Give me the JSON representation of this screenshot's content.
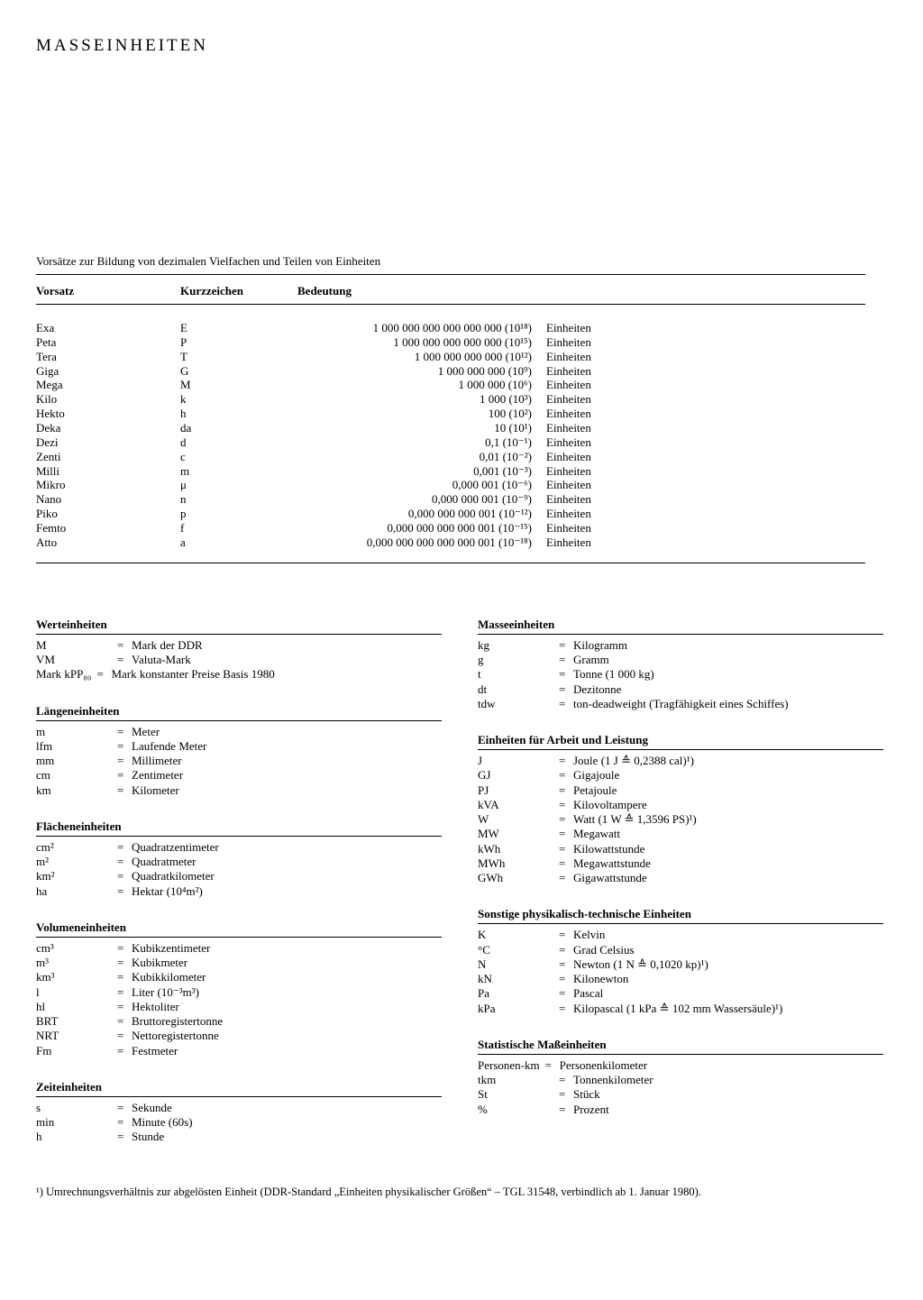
{
  "title": "MASSEINHEITEN",
  "prefixIntro": "Vorsätze zur Bildung von dezimalen Vielfachen und Teilen von Einheiten",
  "prefixHeaders": {
    "vorsatz": "Vorsatz",
    "kurz": "Kurzzeichen",
    "bedeutung": "Bedeutung"
  },
  "einheitenLabel": "Einheiten",
  "prefixes": [
    {
      "name": "Exa",
      "sym": "E",
      "val": "1 000 000 000 000 000 000 (10¹⁸)"
    },
    {
      "name": "Peta",
      "sym": "P",
      "val": "1 000 000 000 000 000 (10¹⁵)"
    },
    {
      "name": "Tera",
      "sym": "T",
      "val": "1 000 000 000 000 (10¹²)"
    },
    {
      "name": "Giga",
      "sym": "G",
      "val": "1 000 000 000 (10⁹)"
    },
    {
      "name": "Mega",
      "sym": "M",
      "val": "1 000 000 (10⁶)"
    },
    {
      "name": "Kilo",
      "sym": "k",
      "val": "1 000 (10³)"
    },
    {
      "name": "Hekto",
      "sym": "h",
      "val": "100 (10²)"
    },
    {
      "name": "Deka",
      "sym": "da",
      "val": "10 (10¹)"
    },
    {
      "name": "Dezi",
      "sym": "d",
      "val": "0,1 (10⁻¹)"
    },
    {
      "name": "Zenti",
      "sym": "c",
      "val": "0,01 (10⁻²)"
    },
    {
      "name": "Milli",
      "sym": "m",
      "val": "0,001 (10⁻³)"
    },
    {
      "name": "Mikro",
      "sym": "μ",
      "val": "0,000 001 (10⁻⁶)"
    },
    {
      "name": "Nano",
      "sym": "n",
      "val": "0,000 000 001 (10⁻⁹)"
    },
    {
      "name": "Piko",
      "sym": "p",
      "val": "0,000 000 000 001 (10⁻¹²)"
    },
    {
      "name": "Femto",
      "sym": "f",
      "val": "0,000 000 000 000 001 (10⁻¹⁵)"
    },
    {
      "name": "Atto",
      "sym": "a",
      "val": "0,000 000 000 000 000 001 (10⁻¹⁸)"
    }
  ],
  "leftSections": [
    {
      "title": "Werteinheiten",
      "rows": [
        {
          "abbr": "M",
          "def": "Mark der DDR"
        },
        {
          "abbr": "VM",
          "def": "Valuta-Mark"
        },
        {
          "abbr": "Mark kPP₈₀",
          "def": "Mark konstanter Preise Basis 1980"
        }
      ]
    },
    {
      "title": "Längeneinheiten",
      "rows": [
        {
          "abbr": "m",
          "def": "Meter"
        },
        {
          "abbr": "lfm",
          "def": "Laufende Meter"
        },
        {
          "abbr": "mm",
          "def": "Millimeter"
        },
        {
          "abbr": "cm",
          "def": "Zentimeter"
        },
        {
          "abbr": "km",
          "def": "Kilometer"
        }
      ]
    },
    {
      "title": "Flächeneinheiten",
      "rows": [
        {
          "abbr": "cm²",
          "def": "Quadratzentimeter"
        },
        {
          "abbr": "m²",
          "def": "Quadratmeter"
        },
        {
          "abbr": "km²",
          "def": "Quadratkilometer"
        },
        {
          "abbr": "ha",
          "def": "Hektar (10⁴m²)"
        }
      ]
    },
    {
      "title": "Volumeneinheiten",
      "rows": [
        {
          "abbr": "cm³",
          "def": "Kubikzentimeter"
        },
        {
          "abbr": "m³",
          "def": "Kubikmeter"
        },
        {
          "abbr": "km³",
          "def": "Kubikkilometer"
        },
        {
          "abbr": "l",
          "def": "Liter (10⁻³m³)"
        },
        {
          "abbr": "hl",
          "def": "Hektoliter"
        },
        {
          "abbr": "BRT",
          "def": "Bruttoregistertonne"
        },
        {
          "abbr": "NRT",
          "def": "Nettoregistertonne"
        },
        {
          "abbr": "Fm",
          "def": "Festmeter"
        }
      ]
    },
    {
      "title": "Zeiteinheiten",
      "rows": [
        {
          "abbr": "s",
          "def": "Sekunde"
        },
        {
          "abbr": "min",
          "def": "Minute (60s)"
        },
        {
          "abbr": "h",
          "def": "Stunde"
        }
      ]
    }
  ],
  "rightSections": [
    {
      "title": "Masseeinheiten",
      "rows": [
        {
          "abbr": "kg",
          "def": "Kilogramm"
        },
        {
          "abbr": "g",
          "def": "Gramm"
        },
        {
          "abbr": "t",
          "def": "Tonne (1 000 kg)"
        },
        {
          "abbr": "dt",
          "def": "Dezitonne"
        },
        {
          "abbr": "tdw",
          "def": "ton-deadweight (Tragfähigkeit eines Schiffes)"
        }
      ]
    },
    {
      "title": "Einheiten für Arbeit und Leistung",
      "rows": [
        {
          "abbr": "J",
          "def": "Joule (1 J ≙ 0,2388 cal)¹)"
        },
        {
          "abbr": "GJ",
          "def": "Gigajoule"
        },
        {
          "abbr": "PJ",
          "def": "Petajoule"
        },
        {
          "abbr": "kVA",
          "def": "Kilovoltampere"
        },
        {
          "abbr": "W",
          "def": "Watt (1 W ≙ 1,3596 PS)¹)"
        },
        {
          "abbr": "MW",
          "def": "Megawatt"
        },
        {
          "abbr": "kWh",
          "def": "Kilowattstunde"
        },
        {
          "abbr": "MWh",
          "def": "Megawattstunde"
        },
        {
          "abbr": "GWh",
          "def": "Gigawattstunde"
        }
      ]
    },
    {
      "title": "Sonstige physikalisch-technische Einheiten",
      "rows": [
        {
          "abbr": "K",
          "def": "Kelvin"
        },
        {
          "abbr": "°C",
          "def": "Grad Celsius"
        },
        {
          "abbr": "N",
          "def": "Newton (1 N ≙ 0,1020 kp)¹)"
        },
        {
          "abbr": "kN",
          "def": "Kilonewton"
        },
        {
          "abbr": "Pa",
          "def": "Pascal"
        },
        {
          "abbr": "kPa",
          "def": "Kilopascal (1 kPa ≙ 102 mm Wassersäule)¹)"
        }
      ]
    },
    {
      "title": "Statistische Maßeinheiten",
      "rows": [
        {
          "abbr": "Personen-km",
          "def": "Personenkilometer"
        },
        {
          "abbr": "tkm",
          "def": "Tonnenkilometer"
        },
        {
          "abbr": "St",
          "def": "Stück"
        },
        {
          "abbr": "%",
          "def": "Prozent"
        }
      ]
    }
  ],
  "footnote": "¹) Umrechnungsverhältnis zur abgelösten Einheit (DDR-Standard „Einheiten physikalischer Größen“ – TGL 31548, verbindlich ab 1. Januar 1980)."
}
